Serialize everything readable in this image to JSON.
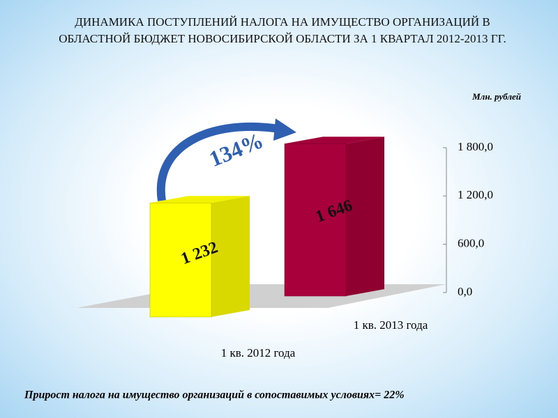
{
  "chart_data": {
    "type": "bar3d",
    "title": "ДИНАМИКА ПОСТУПЛЕНИЙ НАЛОГА НА ИМУЩЕСТВО ОРГАНИЗАЦИЙ В ОБЛАСТНОЙ БЮДЖЕТ НОВОСИБИРСКОЙ ОБЛАСТИ ЗА 1 КВАРТАЛ 2012-2013 ГГ.",
    "unit_label": "Млн. рублей",
    "annotation": "134%",
    "footnote": "Прирост налога на имущество организаций в сопоставимых условиях= 22%",
    "categories": [
      "1 кв. 2012 года",
      "1 кв. 2013 года"
    ],
    "values": [
      1232,
      1646
    ],
    "value_labels": [
      "1 232",
      "1 646"
    ],
    "colors": [
      "#ffff00",
      "#a8003a"
    ],
    "ylim": [
      0,
      1800
    ],
    "yticks": [
      {
        "value": 0,
        "label": "0,0"
      },
      {
        "value": 600,
        "label": "600,0"
      },
      {
        "value": 1200,
        "label": "1 200,0"
      },
      {
        "value": 1800,
        "label": "1 800,0"
      }
    ]
  }
}
